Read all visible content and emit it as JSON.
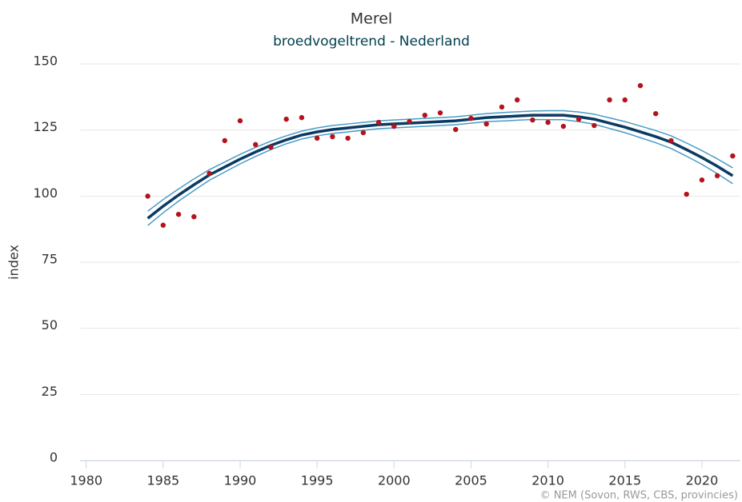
{
  "chart_data": {
    "type": "line",
    "title": "Merel",
    "subtitle": "broedvogeltrend - Nederland",
    "y_label": "index",
    "credit": "© NEM (Sovon, RWS, CBS, provincies)",
    "x": [
      1984,
      1985,
      1986,
      1987,
      1988,
      1989,
      1990,
      1991,
      1992,
      1993,
      1994,
      1995,
      1996,
      1997,
      1998,
      1999,
      2000,
      2001,
      2002,
      2003,
      2004,
      2005,
      2006,
      2007,
      2008,
      2009,
      2010,
      2011,
      2012,
      2013,
      2014,
      2015,
      2016,
      2017,
      2018,
      2019,
      2020,
      2021,
      2022
    ],
    "series": [
      {
        "color": "#4a9cc5",
        "style": "line",
        "width": 1.5,
        "values": [
          94.3,
          98.7,
          102.7,
          106.5,
          110.0,
          112.9,
          115.8,
          118.4,
          120.8,
          122.8,
          124.6,
          125.8,
          126.7,
          127.3,
          127.9,
          128.5,
          128.8,
          129.1,
          129.4,
          129.7,
          130.0,
          130.6,
          131.2,
          131.6,
          131.9,
          132.2,
          132.3,
          132.3,
          131.8,
          131.0,
          129.6,
          128.2,
          126.5,
          124.8,
          122.8,
          120.1,
          117.2,
          114.1,
          110.7
        ]
      },
      {
        "color": "#4a9cc5",
        "style": "line",
        "width": 1.5,
        "values": [
          88.9,
          93.7,
          98.1,
          102.1,
          106.0,
          109.1,
          112.2,
          115.0,
          117.6,
          119.8,
          121.6,
          122.8,
          123.7,
          124.3,
          124.9,
          125.5,
          125.8,
          126.1,
          126.4,
          126.7,
          127.0,
          127.6,
          128.2,
          128.4,
          128.7,
          129.0,
          128.9,
          128.9,
          128.2,
          127.2,
          125.6,
          124.0,
          122.1,
          120.2,
          118.0,
          115.1,
          112.0,
          108.5,
          104.7
        ]
      },
      {
        "color": "#0b3a63",
        "style": "line",
        "width": 3.5,
        "values": [
          91.6,
          96.2,
          100.4,
          104.3,
          108.0,
          111.0,
          114.0,
          116.7,
          119.2,
          121.3,
          123.1,
          124.3,
          125.2,
          125.8,
          126.4,
          127.0,
          127.3,
          127.6,
          127.9,
          128.2,
          128.5,
          129.1,
          129.7,
          130.0,
          130.3,
          130.6,
          130.6,
          130.6,
          130.0,
          129.1,
          127.6,
          126.1,
          124.3,
          122.5,
          120.4,
          117.6,
          114.6,
          111.3,
          107.7
        ]
      },
      {
        "color": "#b5121b",
        "style": "points",
        "values": [
          100,
          89,
          93.1,
          92.2,
          108.6,
          121,
          128.5,
          119.5,
          118.5,
          129.1,
          129.7,
          121.9,
          122.5,
          121.9,
          124,
          127.9,
          126.4,
          128.2,
          130.6,
          131.5,
          125.2,
          129.4,
          127.3,
          133.7,
          136.4,
          128.8,
          127.9,
          126.4,
          129.1,
          126.7,
          136.4,
          136.4,
          141.8,
          131.2,
          121,
          100.7,
          106.1,
          107.7,
          115.2
        ]
      }
    ],
    "xlim": [
      1979.6,
      2022.5
    ],
    "xticks": [
      1980,
      1985,
      1990,
      1995,
      2000,
      2005,
      2010,
      2015,
      2020
    ],
    "ylim": [
      0,
      150
    ],
    "yticks": [
      0,
      25,
      50,
      75,
      100,
      125,
      150
    ],
    "grid": true
  }
}
